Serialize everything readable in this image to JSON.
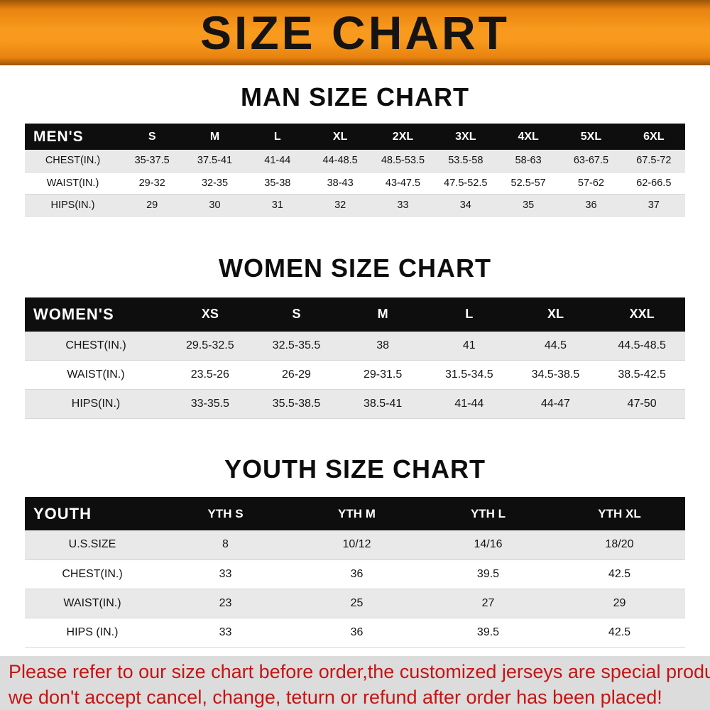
{
  "banner": {
    "title": "SIZE CHART"
  },
  "man": {
    "heading": "MAN SIZE CHART",
    "table": {
      "header": [
        "MEN'S",
        "S",
        "M",
        "L",
        "XL",
        "2XL",
        "3XL",
        "4XL",
        "5XL",
        "6XL"
      ],
      "rows": [
        [
          "CHEST(IN.)",
          "35-37.5",
          "37.5-41",
          "41-44",
          "44-48.5",
          "48.5-53.5",
          "53.5-58",
          "58-63",
          "63-67.5",
          "67.5-72"
        ],
        [
          "WAIST(IN.)",
          "29-32",
          "32-35",
          "35-38",
          "38-43",
          "43-47.5",
          "47.5-52.5",
          "52.5-57",
          "57-62",
          "62-66.5"
        ],
        [
          "HIPS(IN.)",
          "29",
          "30",
          "31",
          "32",
          "33",
          "34",
          "35",
          "36",
          "37"
        ]
      ]
    }
  },
  "women": {
    "heading": "WOMEN SIZE CHART",
    "table": {
      "header": [
        "WOMEN'S",
        "XS",
        "S",
        "M",
        "L",
        "XL",
        "XXL"
      ],
      "rows": [
        [
          "CHEST(IN.)",
          "29.5-32.5",
          "32.5-35.5",
          "38",
          "41",
          "44.5",
          "44.5-48.5"
        ],
        [
          "WAIST(IN.)",
          "23.5-26",
          "26-29",
          "29-31.5",
          "31.5-34.5",
          "34.5-38.5",
          "38.5-42.5"
        ],
        [
          "HIPS(IN.)",
          "33-35.5",
          "35.5-38.5",
          "38.5-41",
          "41-44",
          "44-47",
          "47-50"
        ]
      ]
    }
  },
  "youth": {
    "heading": "YOUTH SIZE CHART",
    "table": {
      "header": [
        "YOUTH",
        "YTH S",
        "YTH M",
        "YTH L",
        "YTH XL"
      ],
      "rows": [
        [
          "U.S.SIZE",
          "8",
          "10/12",
          "14/16",
          "18/20"
        ],
        [
          "CHEST(IN.)",
          "33",
          "36",
          "39.5",
          "42.5"
        ],
        [
          "WAIST(IN.)",
          "23",
          "25",
          "27",
          "29"
        ],
        [
          "HIPS (IN.)",
          "33",
          "36",
          "39.5",
          "42.5"
        ]
      ]
    }
  },
  "footer": {
    "line1": "Please refer to our size chart before order,the customized jerseys are special products,",
    "line2": "we don't accept cancel, change, teturn or refund after order has been placed!"
  },
  "colors": {
    "banner_orange": "#f89a1d",
    "table_header_black": "#0e0e0e",
    "row_alt_gray": "#e9e9e9",
    "footer_bg_gray": "#dcdcdc",
    "footer_text_red": "#c41414"
  }
}
